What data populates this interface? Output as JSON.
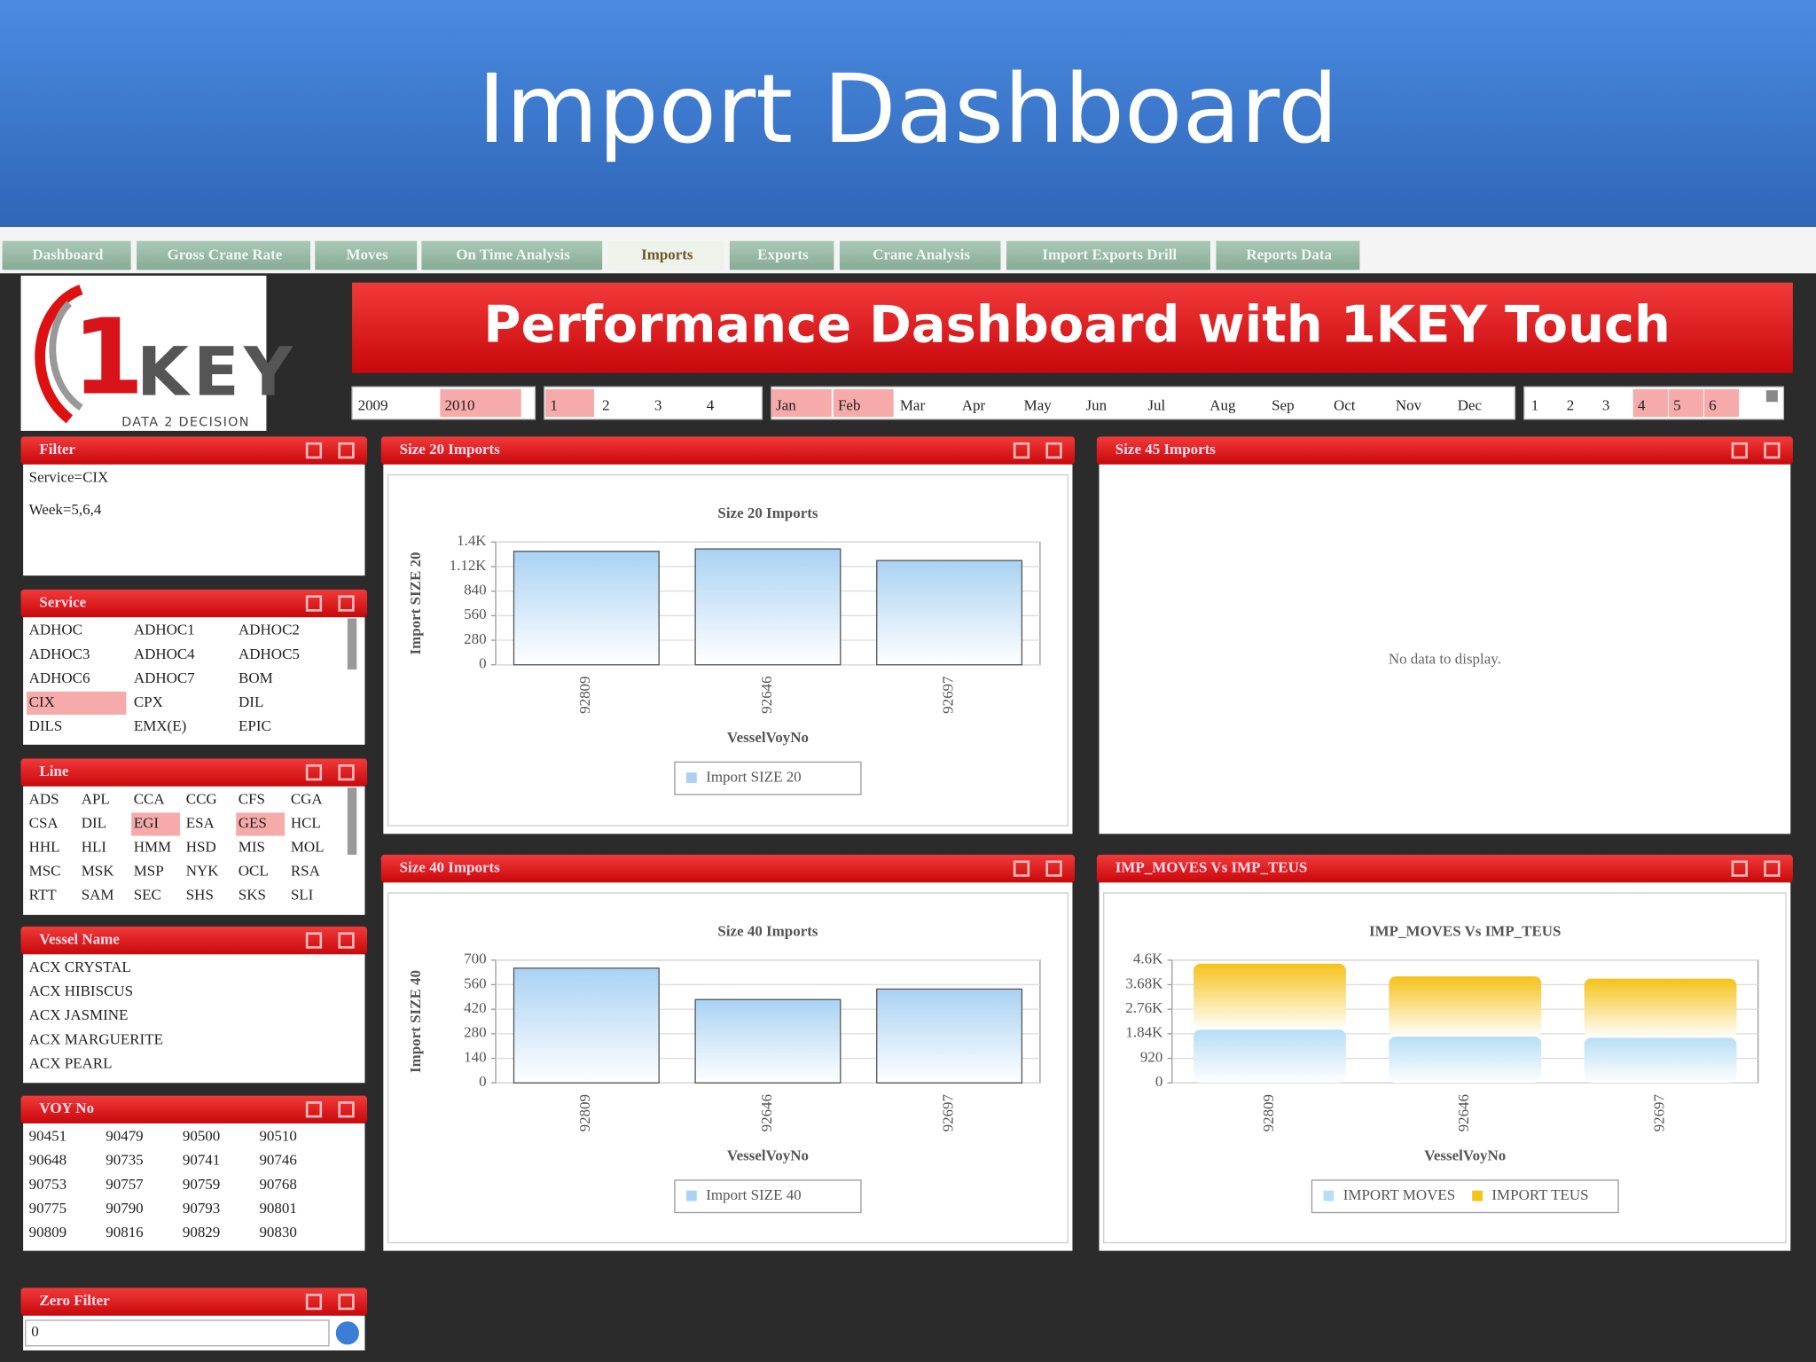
{
  "header": {
    "title": "Import Dashboard"
  },
  "tabs": [
    {
      "label": "Dashboard"
    },
    {
      "label": "Gross Crane Rate"
    },
    {
      "label": "Moves"
    },
    {
      "label": "On Time Analysis"
    },
    {
      "label": "Imports",
      "active": true
    },
    {
      "label": "Exports"
    },
    {
      "label": "Crane Analysis"
    },
    {
      "label": "Import Exports Drill"
    },
    {
      "label": "Reports Data"
    }
  ],
  "logo": {
    "number": "1",
    "word": "KEY",
    "tagline": "DATA 2 DECISION"
  },
  "banner": {
    "title": "Performance Dashboard with 1KEY Touch"
  },
  "time_filter": {
    "years": [
      {
        "label": "2009"
      },
      {
        "label": "2010",
        "selected": true
      }
    ],
    "quarters": [
      {
        "label": "1",
        "selected": true
      },
      {
        "label": "2"
      },
      {
        "label": "3"
      },
      {
        "label": "4"
      }
    ],
    "months": [
      {
        "label": "Jan",
        "selected": true
      },
      {
        "label": "Feb",
        "selected": true
      },
      {
        "label": "Mar"
      },
      {
        "label": "Apr"
      },
      {
        "label": "May"
      },
      {
        "label": "Jun"
      },
      {
        "label": "Jul"
      },
      {
        "label": "Aug"
      },
      {
        "label": "Sep"
      },
      {
        "label": "Oct"
      },
      {
        "label": "Nov"
      },
      {
        "label": "Dec"
      }
    ],
    "weeks": [
      {
        "label": "1"
      },
      {
        "label": "2"
      },
      {
        "label": "3"
      },
      {
        "label": "4",
        "selected": true
      },
      {
        "label": "5",
        "selected": true
      },
      {
        "label": "6",
        "selected": true
      }
    ]
  },
  "filter_panel": {
    "title": "Filter",
    "lines": [
      "Service=CIX",
      "Week=5,6,4"
    ]
  },
  "service_panel": {
    "title": "Service",
    "items": [
      {
        "label": "ADHOC"
      },
      {
        "label": "ADHOC1"
      },
      {
        "label": "ADHOC2"
      },
      {
        "label": "ADHOC3"
      },
      {
        "label": "ADHOC4"
      },
      {
        "label": "ADHOC5"
      },
      {
        "label": "ADHOC6"
      },
      {
        "label": "ADHOC7"
      },
      {
        "label": "BOM"
      },
      {
        "label": "CIX",
        "selected": true
      },
      {
        "label": "CPX"
      },
      {
        "label": "DIL"
      },
      {
        "label": "DILS"
      },
      {
        "label": "EMX(E)"
      },
      {
        "label": "EPIC"
      }
    ]
  },
  "line_panel": {
    "title": "Line",
    "items": [
      {
        "label": "ADS"
      },
      {
        "label": "APL"
      },
      {
        "label": "CCA"
      },
      {
        "label": "CCG"
      },
      {
        "label": "CFS"
      },
      {
        "label": "CGA"
      },
      {
        "label": "CSA"
      },
      {
        "label": "DIL"
      },
      {
        "label": "EGI",
        "selected": true
      },
      {
        "label": "ESA"
      },
      {
        "label": "GES",
        "selected": true
      },
      {
        "label": "HCL"
      },
      {
        "label": "HHL"
      },
      {
        "label": "HLI"
      },
      {
        "label": "HMM"
      },
      {
        "label": "HSD"
      },
      {
        "label": "MIS"
      },
      {
        "label": "MOL"
      },
      {
        "label": "MSC"
      },
      {
        "label": "MSK"
      },
      {
        "label": "MSP"
      },
      {
        "label": "NYK"
      },
      {
        "label": "OCL"
      },
      {
        "label": "RSA"
      },
      {
        "label": "RTT"
      },
      {
        "label": "SAM"
      },
      {
        "label": "SEC"
      },
      {
        "label": "SHS"
      },
      {
        "label": "SKS"
      },
      {
        "label": "SLI"
      }
    ]
  },
  "vessel_panel": {
    "title": "Vessel Name",
    "items": [
      {
        "label": "ACX CRYSTAL"
      },
      {
        "label": "ACX HIBISCUS"
      },
      {
        "label": "ACX JASMINE"
      },
      {
        "label": "ACX MARGUERITE"
      },
      {
        "label": "ACX PEARL"
      }
    ]
  },
  "voy_panel": {
    "title": "VOY No",
    "items": [
      {
        "label": "90451"
      },
      {
        "label": "90479"
      },
      {
        "label": "90500"
      },
      {
        "label": "90510"
      },
      {
        "label": "90648"
      },
      {
        "label": "90735"
      },
      {
        "label": "90741"
      },
      {
        "label": "90746"
      },
      {
        "label": "90753"
      },
      {
        "label": "90757"
      },
      {
        "label": "90759"
      },
      {
        "label": "90768"
      },
      {
        "label": "90775"
      },
      {
        "label": "90790"
      },
      {
        "label": "90793"
      },
      {
        "label": "90801"
      },
      {
        "label": "90809"
      },
      {
        "label": "90816"
      },
      {
        "label": "90829"
      },
      {
        "label": "90830"
      }
    ]
  },
  "zero_filter": {
    "title": "Zero Filter",
    "value": "0"
  },
  "chart_data": [
    {
      "type": "bar",
      "panel_title": "Size 20 Imports",
      "title": "Size 20 Imports",
      "y_label": "Import SIZE 20",
      "x_label": "VesselVoyNo",
      "categories": [
        "92809",
        "92646",
        "92697"
      ],
      "series": [
        {
          "name": "Import SIZE 20",
          "color": "#a9d2f3",
          "values": [
            1294,
            1321,
            1189
          ]
        }
      ],
      "ylim": [
        0,
        1400
      ],
      "yticks": [
        0,
        280,
        560,
        840,
        {
          "value": 1120,
          "label": "1.12K"
        },
        {
          "value": 1400,
          "label": "1.4K"
        }
      ],
      "grid": true
    },
    {
      "type": "bar",
      "panel_title": "Size 45 Imports",
      "message": "No data to display."
    },
    {
      "type": "bar",
      "panel_title": "Size 40 Imports",
      "title": "Size 40 Imports",
      "y_label": "Import SIZE 40",
      "x_label": "VesselVoyNo",
      "categories": [
        "92809",
        "92646",
        "92697"
      ],
      "series": [
        {
          "name": "Import SIZE 40",
          "color": "#a9d2f3",
          "values": [
            654,
            475,
            535
          ]
        }
      ],
      "ylim": [
        0,
        700
      ],
      "yticks": [
        0,
        140,
        280,
        420,
        560,
        700
      ],
      "grid": true
    },
    {
      "type": "bar",
      "stacked": true,
      "panel_title": "IMP_MOVES Vs IMP_TEUS",
      "title": "IMP_MOVES Vs IMP_TEUS",
      "x_label": "VesselVoyNo",
      "categories": [
        "92809",
        "92646",
        "92697"
      ],
      "series": [
        {
          "name": "IMPORT MOVES",
          "color": "#b6def5",
          "values": [
            1996,
            1736,
            1692
          ]
        },
        {
          "name": "IMPORT TEUS",
          "color": "#f5c21a",
          "values": [
            2474,
            2256,
            2214
          ]
        }
      ],
      "ylim": [
        0,
        4600
      ],
      "yticks": [
        0,
        920,
        {
          "value": 1840,
          "label": "1.84K"
        },
        {
          "value": 2760,
          "label": "2.76K"
        },
        {
          "value": 3680,
          "label": "3.68K"
        },
        {
          "value": 4600,
          "label": "4.6K"
        }
      ],
      "grid": true
    }
  ]
}
